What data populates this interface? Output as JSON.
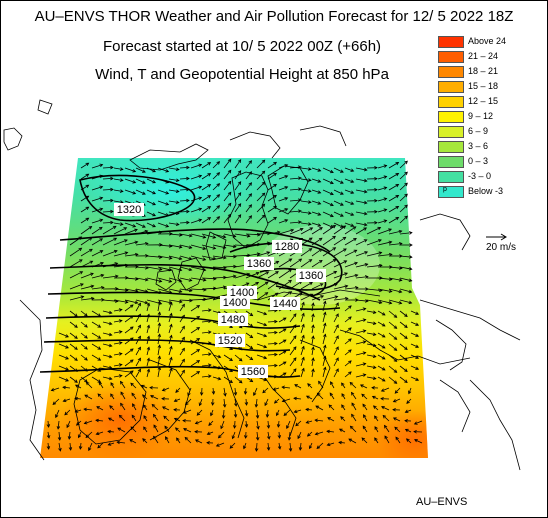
{
  "header": {
    "title": "AU–ENVS THOR Weather and Air Pollution Forecast for 12/ 5 2022  18Z",
    "forecast_start": "Forecast started at 10/ 5 2022  00Z (+66h)",
    "field": "Wind, T and Geopotential Height at 850 hPa"
  },
  "legend": {
    "items": [
      {
        "label": "Above   24",
        "color": "#ff3300"
      },
      {
        "label": "21 – 24",
        "color": "#ff5e00"
      },
      {
        "label": "18 – 21",
        "color": "#ff8800"
      },
      {
        "label": "15 – 18",
        "color": "#ffae00"
      },
      {
        "label": "12 – 15",
        "color": "#ffd100"
      },
      {
        "label": "9 – 12",
        "color": "#fff200"
      },
      {
        "label": "6 –   9",
        "color": "#d8f028"
      },
      {
        "label": "3 –   6",
        "color": "#a6e83c"
      },
      {
        "label": "0 –   3",
        "color": "#6edc6a"
      },
      {
        "label": "-3 –   0",
        "color": "#44e0a2"
      },
      {
        "label": "Below   -3",
        "color": "#33e8cc",
        "marker": "p"
      }
    ]
  },
  "wind_scale": {
    "label": "20 m/s"
  },
  "contours": {
    "labels": [
      "1320",
      "1280",
      "1360",
      "1360",
      "1400",
      "1400",
      "1440",
      "1480",
      "1520",
      "1560"
    ]
  },
  "footer": "AU–ENVS"
}
